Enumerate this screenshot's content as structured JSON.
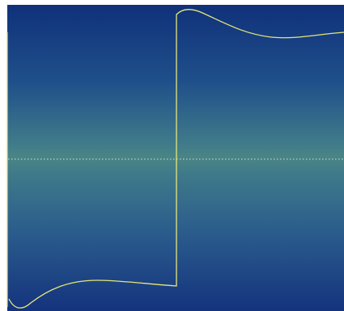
{
  "viewer": {
    "background": {
      "top": "#10317a",
      "middle": "#4a8585",
      "bottom": "#14337d"
    },
    "waveform_color": "#e6e67a",
    "centerline_color": "#d8e0e0",
    "left_edge_color": "#d8d890"
  }
}
